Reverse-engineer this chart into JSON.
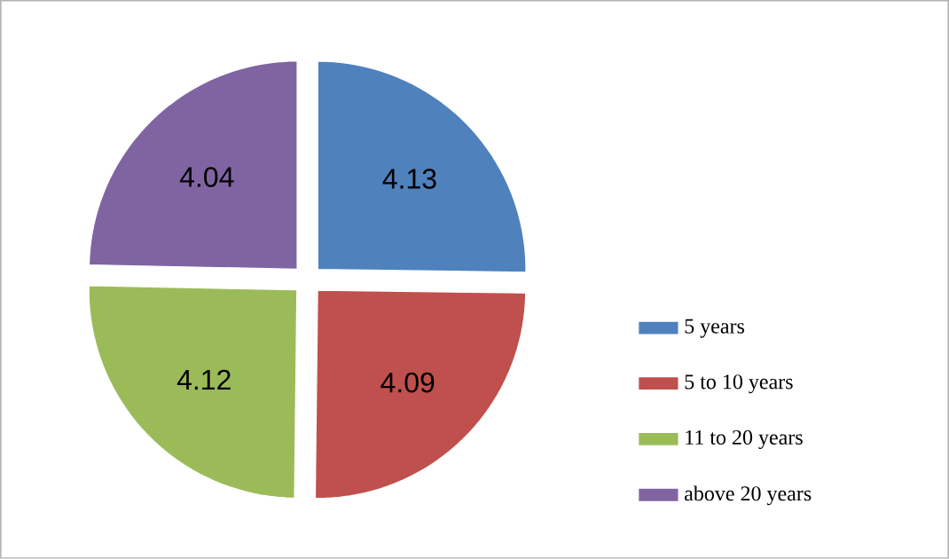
{
  "chart_data": {
    "type": "pie",
    "categories": [
      "5 years",
      "5 to 10 years",
      "11 to 20 years",
      "above 20 years"
    ],
    "values": [
      4.13,
      4.09,
      4.12,
      4.04
    ],
    "colors": [
      "#4f81bd",
      "#c0504d",
      "#9bbb59",
      "#8064a2"
    ],
    "data_labels": true,
    "legend": "right"
  }
}
